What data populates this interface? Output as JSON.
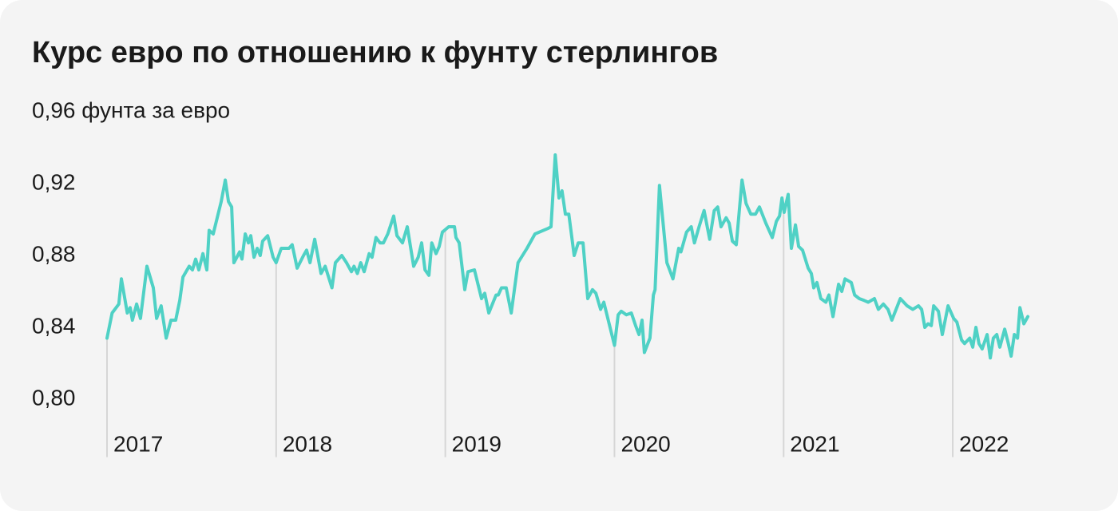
{
  "chart_data": {
    "type": "line",
    "title": "Курс евро по отношению к фунту стерлингов",
    "color": "#4fd1c5",
    "xlim": [
      2017,
      2022.5
    ],
    "xticks": [
      2017,
      2018,
      2019,
      2020,
      2021,
      2022
    ],
    "ylim": [
      0.77,
      0.96
    ],
    "yticks": [
      {
        "value": 0.96,
        "label": "0,96 фунта за евро"
      },
      {
        "value": 0.92,
        "label": "0,92"
      },
      {
        "value": 0.88,
        "label": "0,88"
      },
      {
        "value": 0.84,
        "label": "0,84"
      },
      {
        "value": 0.8,
        "label": "0,80"
      }
    ],
    "x": [
      2017.0,
      2017.03,
      2017.07,
      2017.085,
      2017.12,
      2017.137,
      2017.15,
      2017.175,
      2017.198,
      2017.236,
      2017.274,
      2017.293,
      2017.32,
      2017.35,
      2017.378,
      2017.406,
      2017.43,
      2017.449,
      2017.486,
      2017.505,
      2017.524,
      2017.543,
      2017.567,
      2017.59,
      2017.604,
      2017.628,
      2017.675,
      2017.699,
      2017.718,
      2017.737,
      2017.75,
      2017.784,
      2017.798,
      2017.817,
      2017.836,
      2017.85,
      2017.869,
      2017.888,
      2017.906,
      2017.92,
      2017.95,
      2017.982,
      2018.0,
      2018.03,
      2018.057,
      2018.076,
      2018.095,
      2018.124,
      2018.162,
      2018.18,
      2018.2,
      2018.228,
      2018.265,
      2018.29,
      2018.33,
      2018.35,
      2018.388,
      2018.416,
      2018.445,
      2018.46,
      2018.48,
      2018.5,
      2018.52,
      2018.55,
      2018.567,
      2018.59,
      2018.614,
      2018.634,
      2018.66,
      2018.695,
      2018.714,
      2018.747,
      2018.775,
      2018.813,
      2018.84,
      2018.86,
      2018.88,
      2018.903,
      2018.92,
      2018.945,
      2018.964,
      2018.983,
      2019.02,
      2019.054,
      2019.063,
      2019.082,
      2019.115,
      2019.134,
      2019.172,
      2019.214,
      2019.233,
      2019.257,
      2019.3,
      2019.313,
      2019.332,
      2019.36,
      2019.39,
      2019.43,
      2019.483,
      2019.53,
      2019.606,
      2019.625,
      2019.65,
      2019.672,
      2019.69,
      2019.71,
      2019.73,
      2019.762,
      2019.786,
      2019.814,
      2019.842,
      2019.87,
      2019.89,
      2019.918,
      2019.937,
      2020.0,
      2020.022,
      2020.04,
      2020.07,
      2020.1,
      2020.125,
      2020.145,
      2020.163,
      2020.177,
      2020.21,
      2020.23,
      2020.24,
      2020.266,
      2020.31,
      2020.322,
      2020.346,
      2020.38,
      2020.393,
      2020.426,
      2020.454,
      2020.473,
      2020.5,
      2020.53,
      2020.563,
      2020.59,
      2020.61,
      2020.63,
      2020.66,
      2020.678,
      2020.697,
      2020.72,
      2020.754,
      2020.778,
      2020.806,
      2020.834,
      2020.857,
      2020.895,
      2020.933,
      2020.957,
      2020.976,
      2020.99,
      2021.003,
      2021.027,
      2021.046,
      2021.07,
      2021.089,
      2021.112,
      2021.145,
      2021.164,
      2021.178,
      2021.197,
      2021.22,
      2021.25,
      2021.268,
      2021.292,
      2021.325,
      2021.344,
      2021.363,
      2021.4,
      2021.42,
      2021.447,
      2021.476,
      2021.5,
      2021.537,
      2021.56,
      2021.59,
      2021.617,
      2021.64,
      2021.69,
      2021.73,
      2021.764,
      2021.797,
      2021.816,
      2021.835,
      2021.854,
      2021.873,
      2021.887,
      2021.915,
      2021.938,
      2021.972,
      2022.005,
      2022.024,
      2022.052,
      2022.07,
      2022.1,
      2022.118,
      2022.137,
      2022.155,
      2022.174,
      2022.203,
      2022.222,
      2022.24,
      2022.26,
      2022.278,
      2022.307,
      2022.326,
      2022.345,
      2022.364,
      2022.383,
      2022.397,
      2022.42,
      2022.444
    ],
    "values": [
      0.834,
      0.848,
      0.853,
      0.867,
      0.848,
      0.851,
      0.844,
      0.853,
      0.845,
      0.874,
      0.862,
      0.845,
      0.852,
      0.834,
      0.844,
      0.844,
      0.855,
      0.868,
      0.874,
      0.872,
      0.878,
      0.872,
      0.881,
      0.872,
      0.894,
      0.892,
      0.91,
      0.922,
      0.91,
      0.907,
      0.876,
      0.882,
      0.878,
      0.892,
      0.887,
      0.891,
      0.879,
      0.884,
      0.88,
      0.888,
      0.891,
      0.879,
      0.876,
      0.884,
      0.884,
      0.884,
      0.886,
      0.873,
      0.88,
      0.883,
      0.876,
      0.889,
      0.87,
      0.874,
      0.862,
      0.876,
      0.88,
      0.876,
      0.871,
      0.874,
      0.87,
      0.876,
      0.871,
      0.881,
      0.879,
      0.89,
      0.887,
      0.887,
      0.892,
      0.902,
      0.891,
      0.887,
      0.896,
      0.874,
      0.879,
      0.887,
      0.872,
      0.869,
      0.887,
      0.881,
      0.885,
      0.893,
      0.896,
      0.896,
      0.89,
      0.887,
      0.861,
      0.871,
      0.872,
      0.856,
      0.859,
      0.848,
      0.858,
      0.858,
      0.862,
      0.862,
      0.848,
      0.876,
      0.884,
      0.892,
      0.895,
      0.896,
      0.936,
      0.912,
      0.916,
      0.903,
      0.903,
      0.88,
      0.887,
      0.887,
      0.856,
      0.861,
      0.859,
      0.85,
      0.854,
      0.83,
      0.847,
      0.849,
      0.847,
      0.848,
      0.841,
      0.836,
      0.844,
      0.826,
      0.834,
      0.858,
      0.861,
      0.919,
      0.876,
      0.873,
      0.867,
      0.884,
      0.882,
      0.893,
      0.896,
      0.887,
      0.896,
      0.905,
      0.889,
      0.905,
      0.907,
      0.896,
      0.901,
      0.898,
      0.888,
      0.886,
      0.922,
      0.909,
      0.903,
      0.903,
      0.907,
      0.898,
      0.89,
      0.899,
      0.902,
      0.912,
      0.904,
      0.914,
      0.884,
      0.897,
      0.885,
      0.883,
      0.873,
      0.87,
      0.862,
      0.865,
      0.856,
      0.854,
      0.858,
      0.846,
      0.864,
      0.86,
      0.867,
      0.865,
      0.858,
      0.856,
      0.855,
      0.854,
      0.856,
      0.85,
      0.853,
      0.85,
      0.844,
      0.856,
      0.852,
      0.85,
      0.852,
      0.85,
      0.84,
      0.842,
      0.841,
      0.852,
      0.849,
      0.836,
      0.852,
      0.845,
      0.843,
      0.833,
      0.831,
      0.834,
      0.829,
      0.84,
      0.831,
      0.828,
      0.836,
      0.823,
      0.834,
      0.836,
      0.829,
      0.839,
      0.832,
      0.824,
      0.836,
      0.834,
      0.851,
      0.842,
      0.846
    ]
  }
}
